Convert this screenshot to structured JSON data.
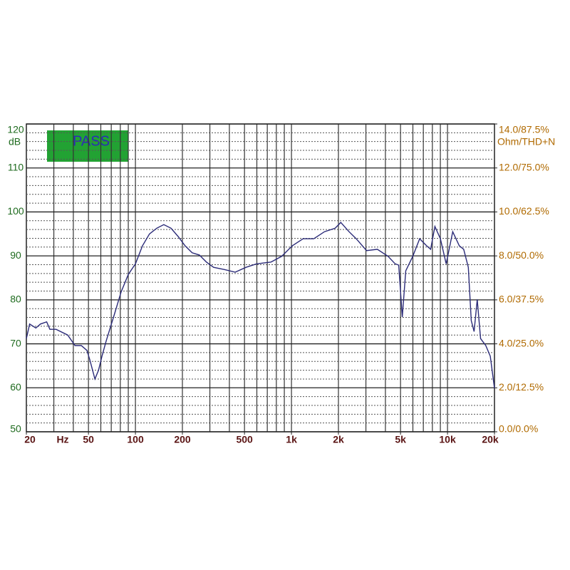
{
  "chart_data": {
    "type": "line",
    "ylabel": "dB",
    "y2label": "Ohm/THD+N",
    "xlabel": "Hz",
    "annotation": "PASS",
    "log_x": true,
    "grid": true,
    "color": "#2b2b78",
    "x": [
      20,
      21,
      23,
      24.6,
      27,
      28.3,
      31,
      36.8,
      41,
      45,
      48.9,
      51,
      55,
      58,
      61,
      65,
      73.6,
      81,
      90,
      100,
      111,
      123,
      137,
      152,
      169,
      188,
      208,
      231,
      257,
      285,
      317,
      372,
      436,
      511,
      598,
      739,
      865,
      1013,
      1187,
      1390,
      1628,
      1906,
      2070,
      2340,
      2600,
      3030,
      3550,
      4160,
      4620,
      4870,
      5130,
      5400,
      5990,
      6630,
      7340,
      7800,
      8300,
      9000,
      9800,
      10800,
      11900,
      12700,
      13600,
      14200,
      14800,
      15500,
      16300,
      17600,
      18800,
      20000
    ],
    "values": [
      71.2,
      74.5,
      73.6,
      74.5,
      75,
      73.3,
      73.3,
      72,
      69.6,
      69.6,
      68.5,
      66.4,
      62,
      64,
      67.2,
      70.7,
      76.9,
      81.8,
      85.8,
      88.2,
      92.3,
      95,
      96.3,
      97.1,
      96.3,
      94.4,
      92.3,
      90.7,
      90.2,
      88.6,
      87.4,
      86.9,
      86.3,
      87.4,
      88.2,
      88.6,
      89.9,
      92.3,
      93.9,
      93.9,
      95.5,
      96.3,
      97.6,
      95.5,
      93.9,
      91.2,
      91.5,
      89.9,
      88.2,
      87.9,
      76.1,
      86.6,
      89.9,
      93.9,
      92.3,
      91.5,
      96.7,
      93.9,
      88.2,
      95.5,
      92.3,
      91.5,
      87.4,
      75.3,
      72.8,
      80.1,
      71.2,
      69.6,
      67.2,
      59.9
    ],
    "xlim": [
      20,
      20000
    ],
    "xticks": [
      20,
      50,
      100,
      200,
      500,
      {
        "value": 1000,
        "label": "1k"
      },
      {
        "value": 2000,
        "label": "2k"
      },
      {
        "value": 5000,
        "label": "5k"
      },
      {
        "value": 10000,
        "label": "10k"
      },
      {
        "value": 20000,
        "label": "20k"
      }
    ],
    "xgrid": [
      30,
      40,
      50,
      60,
      70,
      80,
      90,
      100,
      200,
      300,
      400,
      500,
      600,
      700,
      800,
      900,
      1000,
      2000,
      3000,
      4000,
      5000,
      6000,
      7000,
      8000,
      9000,
      10000
    ],
    "ylim": [
      50,
      120
    ],
    "yticks": [
      50,
      60,
      70,
      80,
      90,
      100,
      110,
      120
    ],
    "yminor": [
      52,
      54,
      56,
      58,
      62,
      64,
      66,
      68,
      72,
      74,
      76,
      78,
      82,
      84,
      86,
      88,
      92,
      94,
      96,
      98,
      102,
      104,
      106,
      108,
      112,
      114,
      116,
      118
    ],
    "y2lim": [
      0,
      14
    ],
    "y2ticks": [
      {
        "value": 0,
        "label": "0.0/0.0%"
      },
      {
        "value": 2,
        "label": "2.0/12.5%"
      },
      {
        "value": 4,
        "label": "4.0/25.0%"
      },
      {
        "value": 6,
        "label": "6.0/37.5%"
      },
      {
        "value": 8,
        "label": "8.0/50.0%"
      },
      {
        "value": 10,
        "label": "10.0/62.5%"
      },
      {
        "value": 12,
        "label": "12.0/75.0%"
      },
      {
        "value": 14,
        "label": "14.0/87.5%"
      }
    ]
  }
}
